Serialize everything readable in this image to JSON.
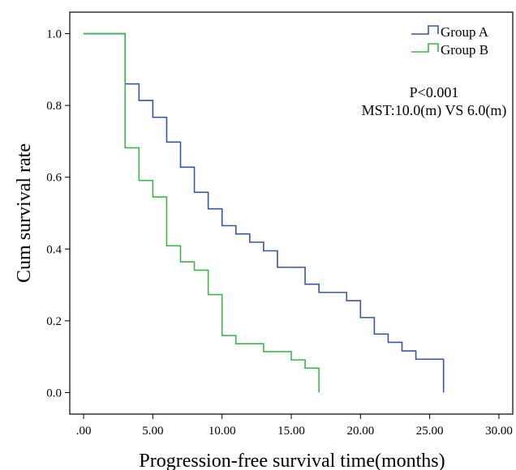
{
  "chart_data": {
    "type": "line",
    "title": "",
    "xlabel": "Progression-free survival time(months)",
    "ylabel": "Cum survival rate",
    "xlim": [
      -1,
      31
    ],
    "ylim": [
      -0.06,
      1.06
    ],
    "x_ticks": [
      0,
      5,
      10,
      15,
      20,
      25,
      30
    ],
    "x_tick_labels": [
      ".00",
      "5.00",
      "10.00",
      "15.00",
      "20.00",
      "25.00",
      "30.00"
    ],
    "y_ticks": [
      0,
      0.2,
      0.4,
      0.6,
      0.8,
      1.0
    ],
    "y_tick_labels": [
      "0.0",
      "0.2",
      "0.4",
      "0.6",
      "0.8",
      "1.0"
    ],
    "grid": false,
    "legend_position": "top-right",
    "annotations": [
      "P<0.001",
      "MST:10.0(m) VS 6.0(m)"
    ],
    "series": [
      {
        "name": "Group A",
        "color": "#3B53A4",
        "x": [
          0,
          3,
          4,
          5,
          6,
          7,
          8,
          9,
          10,
          11,
          12,
          13,
          14,
          16,
          17,
          19,
          20,
          21,
          22,
          23,
          24,
          26,
          26
        ],
        "y": [
          1.0,
          0.86,
          0.814,
          0.767,
          0.698,
          0.628,
          0.558,
          0.512,
          0.465,
          0.442,
          0.419,
          0.395,
          0.349,
          0.302,
          0.279,
          0.256,
          0.209,
          0.163,
          0.14,
          0.116,
          0.093,
          0.093,
          0.0
        ]
      },
      {
        "name": "Group B",
        "color": "#3DB54A",
        "x": [
          0,
          3,
          4,
          5,
          6,
          7,
          8,
          9,
          10,
          11,
          13,
          15,
          16,
          17,
          17
        ],
        "y": [
          1.0,
          0.682,
          0.591,
          0.545,
          0.409,
          0.364,
          0.341,
          0.273,
          0.159,
          0.136,
          0.114,
          0.091,
          0.068,
          0.068,
          0.0
        ]
      }
    ]
  }
}
